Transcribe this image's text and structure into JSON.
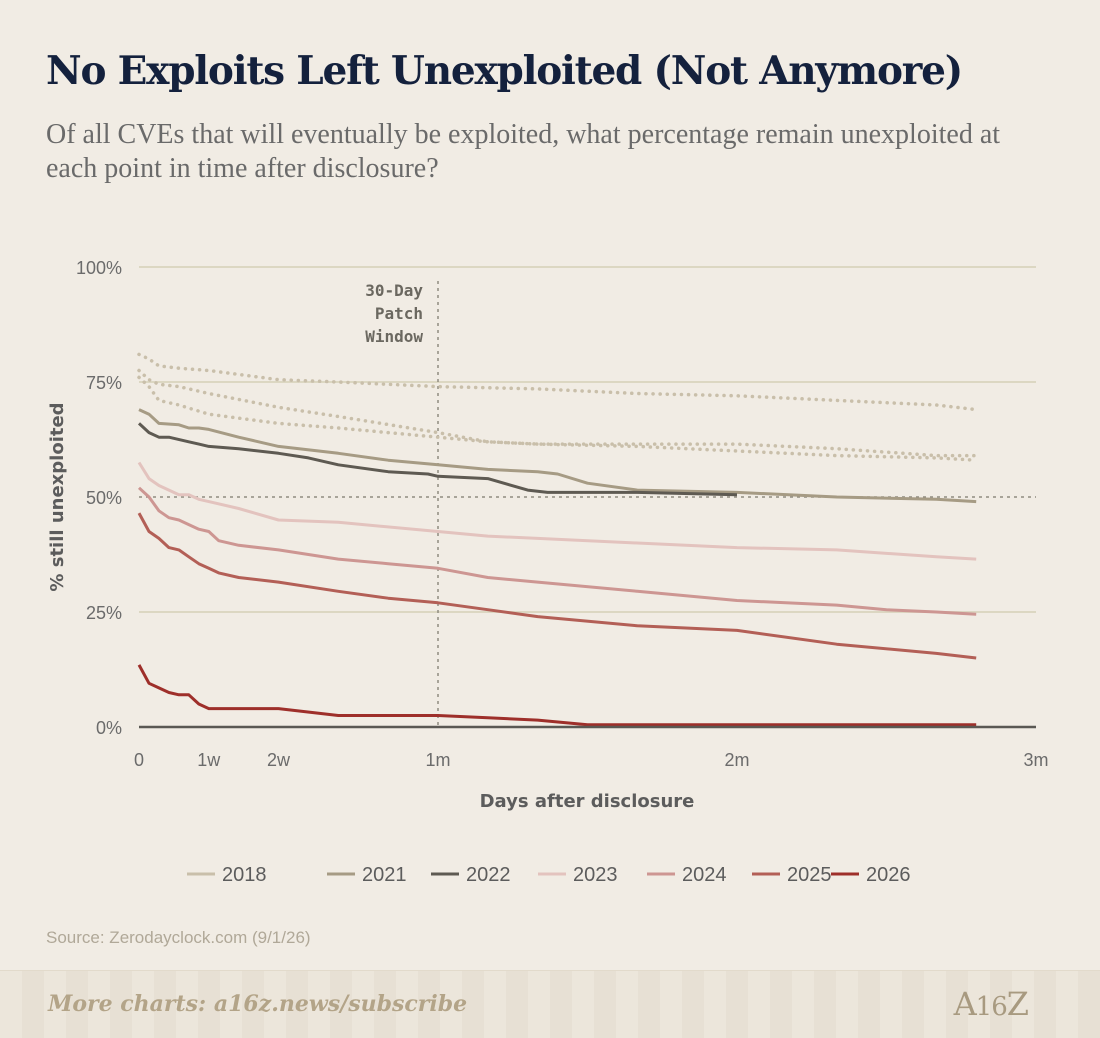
{
  "header": {
    "title": "No Exploits Left Unexploited (Not Anymore)",
    "subtitle": "Of all CVEs that will eventually be exploited, what percentage remain unexploited at each point in time after disclosure?"
  },
  "chart_data": {
    "type": "line",
    "xlabel": "Days after disclosure",
    "ylabel": "% still unexploited",
    "xlim": [
      0,
      90
    ],
    "ylim": [
      0,
      100
    ],
    "x_ticks": [
      {
        "value": 0,
        "label": "0"
      },
      {
        "value": 7,
        "label": "1w"
      },
      {
        "value": 14,
        "label": "2w"
      },
      {
        "value": 30,
        "label": "1m"
      },
      {
        "value": 60,
        "label": "2m"
      },
      {
        "value": 90,
        "label": "3m"
      }
    ],
    "y_ticks": [
      {
        "value": 0,
        "label": "0%"
      },
      {
        "value": 25,
        "label": "25%"
      },
      {
        "value": 50,
        "label": "50%"
      },
      {
        "value": 75,
        "label": "75%"
      },
      {
        "value": 100,
        "label": "100%"
      }
    ],
    "grid": true,
    "reference_lines": [
      {
        "axis": "x",
        "value": 30,
        "label": [
          "30-Day",
          "Patch",
          "Window"
        ],
        "style": "dotted"
      },
      {
        "axis": "y",
        "value": 50,
        "label": "",
        "style": "dotted"
      }
    ],
    "legend_position": "bottom",
    "series": [
      {
        "name": "2018",
        "color": "#c9bfaa",
        "style": "dotted",
        "x": [
          0,
          1,
          2,
          4,
          7,
          14,
          20,
          30,
          40,
          50,
          60,
          70,
          80,
          84
        ],
        "y": [
          81,
          80,
          78.5,
          78,
          77.5,
          75.5,
          75,
          74,
          73.5,
          72.5,
          72,
          71,
          70,
          69
        ]
      },
      {
        "name": "2018",
        "color": "#c9bfaa",
        "style": "dotted",
        "x": [
          0,
          1,
          2,
          4,
          7,
          14,
          20,
          30,
          35,
          40,
          50,
          60,
          70,
          80,
          84
        ],
        "y": [
          77.5,
          75.5,
          74.5,
          74,
          72.5,
          69.5,
          67.5,
          64,
          62,
          61.5,
          61.5,
          61.5,
          60.5,
          59,
          59
        ]
      },
      {
        "name": "2018",
        "color": "#c9bfaa",
        "style": "dotted",
        "x": [
          0,
          1,
          2,
          4,
          7,
          14,
          20,
          30,
          35,
          40,
          50,
          60,
          70,
          80,
          84
        ],
        "y": [
          76,
          74,
          71,
          70,
          68,
          66,
          65,
          63,
          62,
          61.5,
          61,
          60,
          59,
          58.5,
          58
        ]
      },
      {
        "name": "2021",
        "color": "#a69b84",
        "style": "solid",
        "x": [
          0,
          1,
          2,
          4,
          5,
          6,
          7,
          10,
          14,
          20,
          25,
          30,
          35,
          40,
          42,
          45,
          50,
          60,
          70,
          80,
          84
        ],
        "y": [
          69,
          68,
          66,
          65.7,
          65,
          65,
          64.7,
          63,
          61,
          59.5,
          58,
          57,
          56,
          55.5,
          55,
          53,
          51.5,
          51,
          50,
          49.5,
          49
        ]
      },
      {
        "name": "2022",
        "color": "#5e5a52",
        "style": "solid",
        "x": [
          0,
          1,
          2,
          3,
          5,
          6,
          7,
          10,
          14,
          17,
          20,
          25,
          29,
          30,
          35,
          39,
          41,
          50,
          60
        ],
        "y": [
          66,
          64,
          63,
          63,
          62,
          61.5,
          61,
          60.5,
          59.5,
          58.5,
          57,
          55.5,
          55,
          54.5,
          54,
          51.5,
          51,
          51,
          50.5
        ]
      },
      {
        "name": "2023",
        "color": "#e3c3be",
        "style": "solid",
        "x": [
          0,
          1,
          2,
          3,
          4,
          5,
          6,
          7,
          10,
          14,
          20,
          30,
          35,
          40,
          50,
          60,
          70,
          80,
          84
        ],
        "y": [
          57.5,
          54,
          52.5,
          51.5,
          50.5,
          50.5,
          49.5,
          49,
          47.5,
          45,
          44.5,
          42.5,
          41.5,
          41,
          40,
          39,
          38.5,
          37,
          36.5
        ]
      },
      {
        "name": "2024",
        "color": "#cd9692",
        "style": "solid",
        "x": [
          0,
          1,
          2,
          3,
          4,
          5,
          6,
          7,
          8,
          10,
          14,
          20,
          25,
          30,
          35,
          40,
          50,
          60,
          70,
          75,
          80,
          84
        ],
        "y": [
          52,
          50,
          47,
          45.5,
          45,
          44,
          43,
          42.5,
          40.5,
          39.5,
          38.5,
          36.5,
          35.5,
          34.5,
          32.5,
          31.5,
          29.5,
          27.5,
          26.5,
          25.5,
          25,
          24.5
        ]
      },
      {
        "name": "2025",
        "color": "#b35f56",
        "style": "solid",
        "x": [
          0,
          1,
          2,
          3,
          4,
          5,
          6,
          7,
          8,
          10,
          14,
          20,
          25,
          30,
          35,
          40,
          50,
          60,
          70,
          80,
          84
        ],
        "y": [
          46.5,
          42.5,
          41,
          39,
          38.5,
          37,
          35.5,
          34.5,
          33.5,
          32.5,
          31.5,
          29.5,
          28,
          27,
          25.5,
          24,
          22,
          21,
          18,
          16,
          15
        ]
      },
      {
        "name": "2026",
        "color": "#9e2f2a",
        "style": "solid",
        "x": [
          0,
          1,
          2,
          3,
          4,
          5,
          6,
          7,
          8,
          10,
          14,
          20,
          25,
          30,
          35,
          40,
          45,
          50,
          60,
          70,
          80,
          84
        ],
        "y": [
          13.5,
          9.5,
          8.5,
          7.5,
          7,
          7,
          5,
          4,
          4,
          4,
          4,
          2.5,
          2.5,
          2.5,
          2,
          1.5,
          0.5,
          0.5,
          0.5,
          0.5,
          0.5,
          0.5
        ]
      }
    ]
  },
  "footer": {
    "source": "Source: Zerodayclock.com (9/1/26)",
    "more_charts": "More charts: a16z.news/subscribe",
    "logo": "A16Z"
  }
}
